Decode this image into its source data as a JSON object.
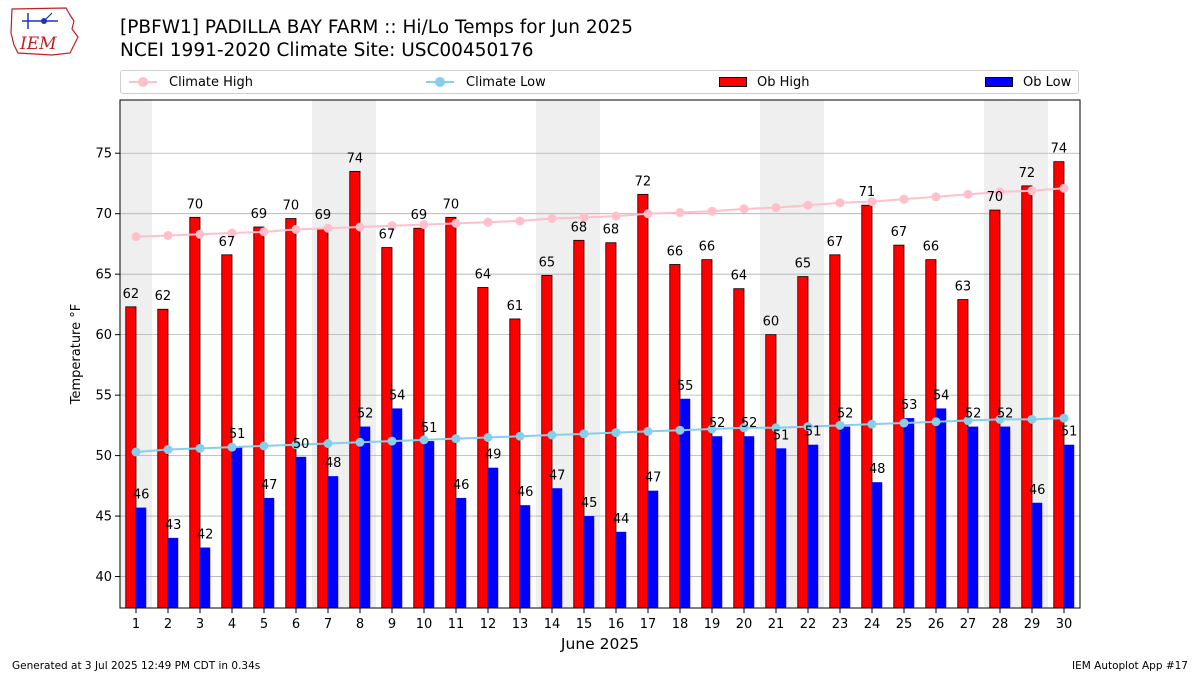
{
  "header": {
    "title_line1": "[PBFW1] PADILLA BAY FARM :: Hi/Lo Temps for Jun 2025",
    "title_line2": "NCEI 1991-2020 Climate Site: USC00450176",
    "logo_text": "IEM"
  },
  "legend": {
    "climate_high": "Climate High",
    "climate_low": "Climate Low",
    "ob_high": "Ob High",
    "ob_low": "Ob Low"
  },
  "colors": {
    "ob_high": "#ff0000",
    "ob_low": "#0000ff",
    "climate_high": "#ffc0cb",
    "climate_low": "#87ceeb",
    "weekend_band": "#efefef",
    "grid": "#b0b0b0"
  },
  "footer": {
    "left": "Generated at 3 Jul 2025 12:49 PM CDT in 0.34s",
    "right": "IEM Autoplot App #17"
  },
  "chart_data": {
    "type": "bar",
    "xlabel": "June 2025",
    "ylabel": "Temperature °F",
    "ylim": [
      37.4,
      79.4
    ],
    "yticks": [
      40,
      45,
      50,
      55,
      60,
      65,
      70,
      75
    ],
    "grid": "horizontal",
    "legend_position": "top",
    "categories": [
      "1",
      "2",
      "3",
      "4",
      "5",
      "6",
      "7",
      "8",
      "9",
      "10",
      "11",
      "12",
      "13",
      "14",
      "15",
      "16",
      "17",
      "18",
      "19",
      "20",
      "21",
      "22",
      "23",
      "24",
      "25",
      "26",
      "27",
      "28",
      "29",
      "30"
    ],
    "weekend_days": [
      1,
      7,
      8,
      14,
      15,
      21,
      22,
      28,
      29
    ],
    "series": [
      {
        "name": "Ob High",
        "kind": "bar",
        "values": [
          62.3,
          62.1,
          69.7,
          66.6,
          68.9,
          69.6,
          68.8,
          73.5,
          67.2,
          68.8,
          69.7,
          63.9,
          61.3,
          64.9,
          67.8,
          67.6,
          71.6,
          65.8,
          66.2,
          63.8,
          60.0,
          64.8,
          66.6,
          70.7,
          67.4,
          66.2,
          62.9,
          70.3,
          72.3,
          74.3
        ],
        "labels": [
          "62",
          "62",
          "70",
          "67",
          "69",
          "70",
          "69",
          "74",
          "67",
          "69",
          "70",
          "64",
          "61",
          "65",
          "68",
          "68",
          "72",
          "66",
          "66",
          "64",
          "60",
          "65",
          "67",
          "71",
          "67",
          "66",
          "63",
          "70",
          "72",
          "74"
        ]
      },
      {
        "name": "Ob Low",
        "kind": "bar",
        "values": [
          45.7,
          43.2,
          42.4,
          50.7,
          46.5,
          49.9,
          48.3,
          52.4,
          53.9,
          51.2,
          46.5,
          49.0,
          45.9,
          47.3,
          45.0,
          43.7,
          47.1,
          54.7,
          51.6,
          51.6,
          50.6,
          50.9,
          52.4,
          47.8,
          53.1,
          53.9,
          52.4,
          52.4,
          46.1,
          50.9
        ],
        "labels": [
          "46",
          "43",
          "42",
          "51",
          "47",
          "50",
          "48",
          "52",
          "54",
          "51",
          "46",
          "49",
          "46",
          "47",
          "45",
          "44",
          "47",
          "55",
          "52",
          "52",
          "51",
          "51",
          "52",
          "48",
          "53",
          "54",
          "52",
          "52",
          "46",
          "51"
        ]
      },
      {
        "name": "Climate High",
        "kind": "line",
        "values": [
          68.1,
          68.2,
          68.3,
          68.4,
          68.5,
          68.7,
          68.8,
          68.9,
          69.0,
          69.1,
          69.2,
          69.3,
          69.4,
          69.6,
          69.7,
          69.8,
          70.0,
          70.1,
          70.2,
          70.4,
          70.5,
          70.7,
          70.9,
          71.0,
          71.2,
          71.4,
          71.6,
          71.8,
          71.9,
          72.1
        ]
      },
      {
        "name": "Climate Low",
        "kind": "line",
        "values": [
          50.3,
          50.5,
          50.6,
          50.7,
          50.8,
          50.9,
          51.0,
          51.1,
          51.2,
          51.3,
          51.4,
          51.5,
          51.6,
          51.7,
          51.8,
          51.9,
          52.0,
          52.1,
          52.2,
          52.3,
          52.3,
          52.4,
          52.5,
          52.6,
          52.7,
          52.8,
          52.9,
          53.0,
          53.0,
          53.1
        ]
      }
    ]
  }
}
